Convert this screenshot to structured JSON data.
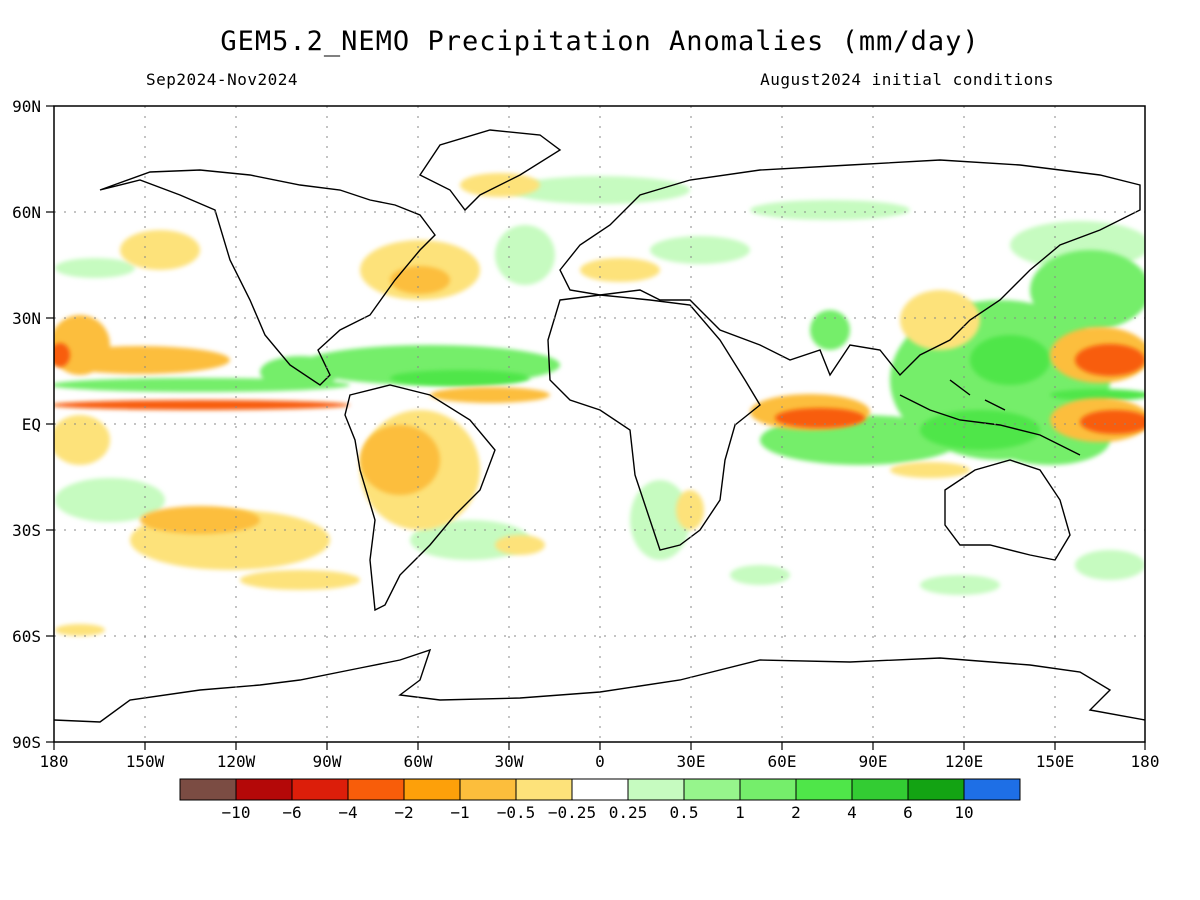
{
  "title": "GEM5.2_NEMO Precipitation Anomalies (mm/day)",
  "period": "Sep2024-Nov2024",
  "initial_conditions": "August2024 initial conditions",
  "axes": {
    "lat_labels": [
      "90N",
      "60N",
      "30N",
      "EQ",
      "30S",
      "60S",
      "90S"
    ],
    "lon_labels": [
      "180",
      "150W",
      "120W",
      "90W",
      "60W",
      "30W",
      "0",
      "30E",
      "60E",
      "90E",
      "120E",
      "150E",
      "180"
    ]
  },
  "colorbar": {
    "colors": [
      "#7b4c43",
      "#b40808",
      "#dc1e0a",
      "#f85d0a",
      "#fda00a",
      "#fcbe3c",
      "#fde27a",
      "#ffffff",
      "#c6fbc0",
      "#96f58c",
      "#75ee6b",
      "#4fe649",
      "#33cc33",
      "#13a313",
      "#1e6fe6"
    ],
    "labels": [
      "-10",
      "-6",
      "-4",
      "-2",
      "-1",
      "-0.5",
      "-0.25",
      "0.25",
      "0.5",
      "1",
      "2",
      "4",
      "6",
      "10"
    ]
  },
  "map_colors": {
    "dry_light": "#fde27a",
    "dry_mid": "#fcbe3c",
    "dry_strong": "#f85d0a",
    "wet_light": "#c6fbc0",
    "wet_mid": "#75ee6b",
    "wet_strong": "#4fe649"
  }
}
